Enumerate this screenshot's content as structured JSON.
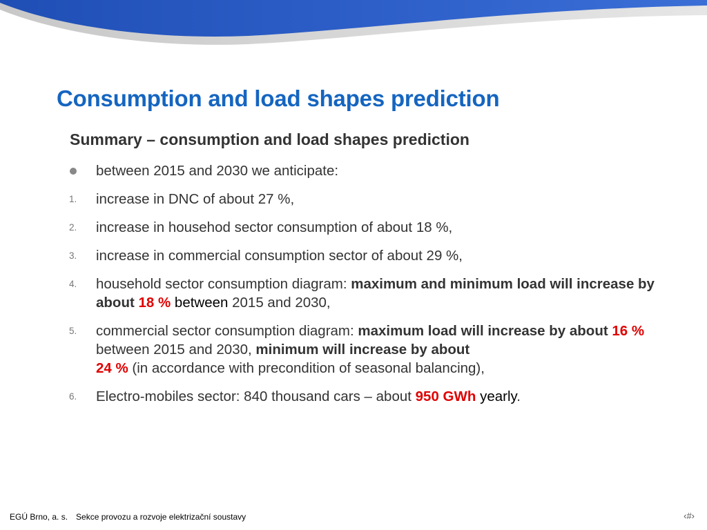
{
  "slide": {
    "title": "Consumption and load shapes prediction",
    "subtitle": "Summary – consumption and load shapes prediction"
  },
  "list": {
    "bullet": {
      "text": "between 2015 and 2030 we anticipate:"
    },
    "items": [
      {
        "marker": "1.",
        "text": "increase in DNC of about 27 %,"
      },
      {
        "marker": "2.",
        "text": "increase in househod sector consumption of about 18 %,"
      },
      {
        "marker": "3.",
        "text": "increase in commercial consumption sector of about 29 %,"
      },
      {
        "marker": "4.",
        "prefix": "household sector consumption diagram: ",
        "bold": "maximum and minimum load will increase by about ",
        "highlight": "18 %",
        "middle": " between",
        "suffix": " 2015 and 2030,"
      },
      {
        "marker": "5.",
        "prefix": "commercial sector consumption diagram: ",
        "bold1": "maximum load will increase by about ",
        "highlight1": "16 %",
        "middle": " between 2015 and 2030, ",
        "bold2": "minimum will increase by about",
        "highlight2": "24 %",
        "suffix": " (in accordance with precondition of seasonal balancing),"
      },
      {
        "marker": "6.",
        "prefix": "Electro-mobiles sector: 840 thousand cars – about ",
        "highlight": "950 GWh",
        "middle": " yearly",
        "suffix": "."
      }
    ]
  },
  "footer": {
    "company": "EGÚ Brno, a. s.",
    "department": "Sekce provozu a rozvoje elektrizační soustavy",
    "page_number": "‹#›"
  },
  "colors": {
    "title": "#1565c0",
    "banner_blue": "#2f62c6",
    "highlight": "#e00000"
  }
}
